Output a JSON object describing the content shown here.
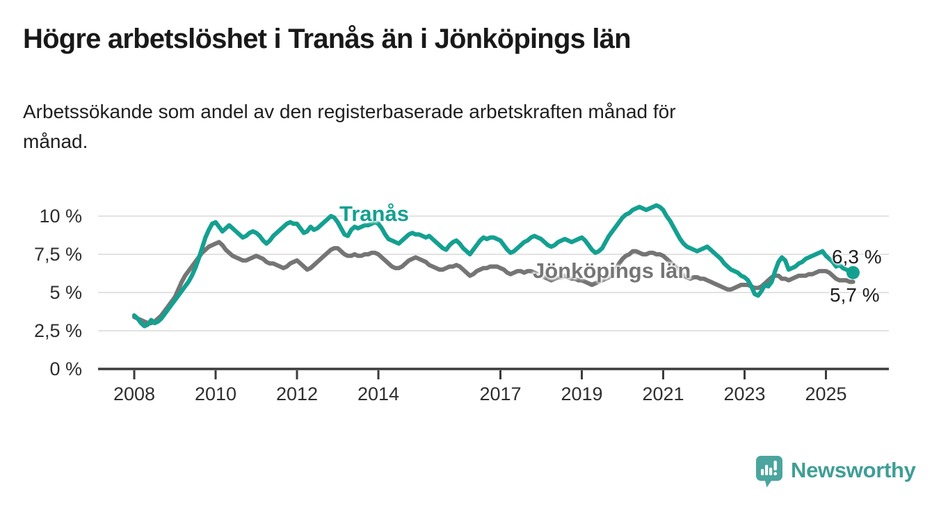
{
  "header": {
    "title": "Högre arbetslöshet i Tranås än i Jönköpings län",
    "subtitle_line1": "Arbetssökande som andel av den registerbaserade arbetskraften månad för",
    "subtitle_line2": "månad."
  },
  "chart_data": {
    "type": "line",
    "x_unit": "month",
    "x_start": "2008-01",
    "x_end": "2025-09",
    "ylim": [
      0,
      10.7
    ],
    "grid": "horizontal",
    "legend_position": "inline-labels-on-chart",
    "colors": {
      "grid": "#d9d9d9",
      "axis": "#3b3b3b",
      "tick_text": "#2e2e2e"
    },
    "y_ticks": {
      "values": [
        0,
        2.5,
        5,
        7.5,
        10
      ],
      "labels": [
        "0 %",
        "2,5 %",
        "5 %",
        "7,5 %",
        "10 %"
      ]
    },
    "x_ticks": {
      "years": [
        2008,
        2010,
        2012,
        2014,
        2017,
        2019,
        2021,
        2023,
        2025
      ],
      "labels": [
        "2008",
        "2010",
        "2012",
        "2014",
        "2017",
        "2019",
        "2021",
        "2023",
        "2025"
      ]
    },
    "series": [
      {
        "name": "Tranås",
        "color": "#14A091",
        "end_value": 6.3,
        "end_label": "6,3 %",
        "end_dot": true,
        "values": [
          3.5,
          3.3,
          3.0,
          2.8,
          2.9,
          3.2,
          3.0,
          3.1,
          3.3,
          3.6,
          3.9,
          4.2,
          4.5,
          4.8,
          5.1,
          5.4,
          5.7,
          6.1,
          6.6,
          7.2,
          7.9,
          8.6,
          9.1,
          9.5,
          9.6,
          9.3,
          9.0,
          9.2,
          9.4,
          9.2,
          9.0,
          8.8,
          8.6,
          8.7,
          8.9,
          9.0,
          8.9,
          8.7,
          8.4,
          8.2,
          8.4,
          8.7,
          8.9,
          9.1,
          9.3,
          9.5,
          9.6,
          9.5,
          9.5,
          9.2,
          8.9,
          9.0,
          9.3,
          9.1,
          9.2,
          9.4,
          9.6,
          9.8,
          10.0,
          9.9,
          9.6,
          9.2,
          8.8,
          8.7,
          9.1,
          9.3,
          9.2,
          9.3,
          9.4,
          9.4,
          9.5,
          9.6,
          9.5,
          9.2,
          8.8,
          8.5,
          8.4,
          8.3,
          8.2,
          8.4,
          8.6,
          8.8,
          8.9,
          8.8,
          8.8,
          8.7,
          8.6,
          8.7,
          8.5,
          8.3,
          8.1,
          7.9,
          7.8,
          8.1,
          8.3,
          8.4,
          8.2,
          7.9,
          7.7,
          7.5,
          7.8,
          8.1,
          8.4,
          8.6,
          8.5,
          8.6,
          8.6,
          8.5,
          8.4,
          8.1,
          7.8,
          7.6,
          7.7,
          7.9,
          8.1,
          8.3,
          8.4,
          8.6,
          8.7,
          8.6,
          8.5,
          8.3,
          8.1,
          8.0,
          8.1,
          8.3,
          8.4,
          8.5,
          8.4,
          8.3,
          8.4,
          8.5,
          8.6,
          8.4,
          8.1,
          7.8,
          7.6,
          7.7,
          7.9,
          8.3,
          8.7,
          9.0,
          9.3,
          9.6,
          9.9,
          10.1,
          10.2,
          10.4,
          10.5,
          10.6,
          10.5,
          10.4,
          10.5,
          10.6,
          10.7,
          10.6,
          10.4,
          10.0,
          9.7,
          9.3,
          8.9,
          8.5,
          8.2,
          8.0,
          7.9,
          7.8,
          7.7,
          7.8,
          7.9,
          8.0,
          7.8,
          7.6,
          7.4,
          7.2,
          6.9,
          6.7,
          6.5,
          6.4,
          6.3,
          6.1,
          6.0,
          5.8,
          5.4,
          4.9,
          4.8,
          5.1,
          5.5,
          5.4,
          5.7,
          6.4,
          7.0,
          7.3,
          7.1,
          6.5,
          6.6,
          6.7,
          6.9,
          7.0,
          7.2,
          7.3,
          7.4,
          7.5,
          7.6,
          7.7,
          7.4,
          7.2,
          7.0,
          6.7,
          6.8,
          6.6,
          6.5,
          6.4,
          6.3
        ]
      },
      {
        "name": "Jönköpings län",
        "color": "#757575",
        "end_value": 5.7,
        "end_label": "5,7 %",
        "end_dot": false,
        "values": [
          3.4,
          3.3,
          3.2,
          3.1,
          3.0,
          3.0,
          3.1,
          3.3,
          3.5,
          3.8,
          4.1,
          4.4,
          4.7,
          5.2,
          5.7,
          6.1,
          6.4,
          6.7,
          7.0,
          7.3,
          7.6,
          7.8,
          8.0,
          8.1,
          8.2,
          8.3,
          8.1,
          7.8,
          7.6,
          7.4,
          7.3,
          7.2,
          7.1,
          7.1,
          7.2,
          7.3,
          7.4,
          7.3,
          7.2,
          7.0,
          6.9,
          6.9,
          6.8,
          6.7,
          6.6,
          6.7,
          6.9,
          7.0,
          7.1,
          6.9,
          6.7,
          6.5,
          6.6,
          6.8,
          7.0,
          7.2,
          7.4,
          7.6,
          7.8,
          7.9,
          7.9,
          7.7,
          7.5,
          7.4,
          7.4,
          7.5,
          7.4,
          7.4,
          7.5,
          7.5,
          7.6,
          7.6,
          7.5,
          7.3,
          7.1,
          6.9,
          6.7,
          6.6,
          6.6,
          6.7,
          6.9,
          7.1,
          7.2,
          7.3,
          7.2,
          7.1,
          7.0,
          6.8,
          6.7,
          6.6,
          6.5,
          6.5,
          6.6,
          6.7,
          6.7,
          6.8,
          6.7,
          6.5,
          6.3,
          6.1,
          6.2,
          6.4,
          6.5,
          6.6,
          6.6,
          6.7,
          6.7,
          6.7,
          6.6,
          6.5,
          6.3,
          6.2,
          6.3,
          6.4,
          6.4,
          6.3,
          6.4,
          6.4,
          6.3,
          6.2,
          6.1,
          6.0,
          5.9,
          5.8,
          5.9,
          6.0,
          6.0,
          6.1,
          6.0,
          5.9,
          5.9,
          5.8,
          5.8,
          5.7,
          5.6,
          5.5,
          5.6,
          5.7,
          5.8,
          5.9,
          6.0,
          6.2,
          6.5,
          6.9,
          7.2,
          7.4,
          7.5,
          7.7,
          7.7,
          7.6,
          7.5,
          7.5,
          7.6,
          7.6,
          7.5,
          7.5,
          7.4,
          7.2,
          7.0,
          6.8,
          6.6,
          6.4,
          6.1,
          6.0,
          5.9,
          6.0,
          6.0,
          5.9,
          5.9,
          5.8,
          5.7,
          5.6,
          5.5,
          5.4,
          5.3,
          5.2,
          5.2,
          5.3,
          5.4,
          5.5,
          5.5,
          5.5,
          5.4,
          5.3,
          5.3,
          5.4,
          5.6,
          5.8,
          6.0,
          6.1,
          6.1,
          5.9,
          5.9,
          5.8,
          5.9,
          6.0,
          6.1,
          6.1,
          6.1,
          6.2,
          6.2,
          6.3,
          6.4,
          6.4,
          6.4,
          6.3,
          6.1,
          5.9,
          5.8,
          5.8,
          5.8,
          5.7,
          5.7
        ]
      }
    ]
  },
  "footer": {
    "brand": "Newsworthy",
    "logo_icon": "bar-chart-speech-bubble-icon",
    "icon_color": "#4BA59E",
    "brand_color": "#3F9E95"
  }
}
